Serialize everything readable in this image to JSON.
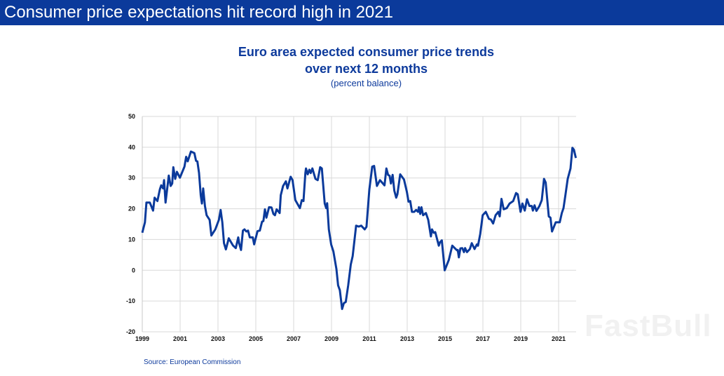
{
  "header": {
    "title": "Consumer price expectations hit record high in 2021",
    "color": "#0b3a9b"
  },
  "watermark": "FastBull",
  "chart_data": {
    "type": "line",
    "title": [
      "Euro area expected consumer price trends",
      "over next 12 months"
    ],
    "subtitle": "(percent balance)",
    "source": "Source: European Commission",
    "xlabel": "",
    "ylabel": "",
    "xlim": [
      1999,
      2022
    ],
    "ylim": [
      -20,
      50
    ],
    "xticks": [
      "1999",
      "2001",
      "2003",
      "2005",
      "2007",
      "2009",
      "2011",
      "2013",
      "2015",
      "2017",
      "2019",
      "2021"
    ],
    "yticks": [
      50,
      40,
      30,
      20,
      10,
      0,
      -10,
      -20
    ],
    "grid": true,
    "line_color": "#0b3a9b",
    "series": [
      {
        "x": [
          1999.0,
          1999.14,
          1999.22,
          1999.4,
          1999.57,
          1999.65,
          1999.8,
          1999.93,
          2000.0,
          2000.1,
          2000.15,
          2000.23,
          2000.4,
          2000.5,
          2000.58,
          2000.64,
          2000.74,
          2000.83,
          2000.99,
          2001.23,
          2001.32,
          2001.4,
          2001.57,
          2001.75,
          2001.84,
          2001.91,
          2002.0,
          2002.09,
          2002.15,
          2002.22,
          2002.31,
          2002.4,
          2002.56,
          2002.65,
          2002.86,
          2003.05,
          2003.14,
          2003.23,
          2003.32,
          2003.42,
          2003.57,
          2003.79,
          2003.94,
          2004.07,
          2004.12,
          2004.22,
          2004.32,
          2004.4,
          2004.5,
          2004.59,
          2004.68,
          2004.84,
          2004.91,
          2005.09,
          2005.21,
          2005.33,
          2005.4,
          2005.48,
          2005.56,
          2005.7,
          2005.83,
          2005.93,
          2006.01,
          2006.1,
          2006.26,
          2006.32,
          2006.44,
          2006.59,
          2006.67,
          2006.84,
          2006.94,
          2007.09,
          2007.33,
          2007.43,
          2007.52,
          2007.62,
          2007.65,
          2007.74,
          2007.83,
          2007.9,
          2007.99,
          2008.15,
          2008.27,
          2008.4,
          2008.49,
          2008.64,
          2008.72,
          2008.77,
          2008.86,
          2008.98,
          2009.1,
          2009.26,
          2009.35,
          2009.44,
          2009.56,
          2009.65,
          2009.75,
          2009.88,
          2010.02,
          2010.12,
          2010.3,
          2010.44,
          2010.57,
          2010.75,
          2010.85,
          2011.0,
          2011.15,
          2011.25,
          2011.4,
          2011.56,
          2011.8,
          2011.9,
          2011.99,
          2012.07,
          2012.14,
          2012.23,
          2012.32,
          2012.42,
          2012.48,
          2012.63,
          2012.83,
          2012.98,
          2013.07,
          2013.16,
          2013.25,
          2013.37,
          2013.47,
          2013.57,
          2013.62,
          2013.69,
          2013.75,
          2013.84,
          2013.99,
          2014.11,
          2014.25,
          2014.31,
          2014.4,
          2014.48,
          2014.67,
          2014.73,
          2014.83,
          2014.98,
          2015.2,
          2015.38,
          2015.51,
          2015.63,
          2015.67,
          2015.73,
          2015.81,
          2015.91,
          2016.0,
          2016.06,
          2016.16,
          2016.31,
          2016.41,
          2016.56,
          2016.68,
          2016.74,
          2016.86,
          2016.99,
          2017.15,
          2017.32,
          2017.42,
          2017.54,
          2017.67,
          2017.81,
          2017.89,
          2017.98,
          2018.1,
          2018.26,
          2018.41,
          2018.6,
          2018.75,
          2018.84,
          2018.99,
          2019.09,
          2019.21,
          2019.33,
          2019.46,
          2019.58,
          2019.64,
          2019.73,
          2019.83,
          2019.99,
          2020.11,
          2020.23,
          2020.32,
          2020.48,
          2020.57,
          2020.65,
          2020.85,
          2021.06,
          2021.17,
          2021.26,
          2021.36,
          2021.48,
          2021.63,
          2021.73,
          2021.81,
          2021.91
        ],
        "y": [
          12.2,
          15.6,
          22,
          22,
          19.4,
          23.6,
          22.5,
          26.3,
          27.6,
          26.6,
          29.3,
          22,
          30.8,
          27.4,
          28.2,
          33.5,
          29.7,
          32,
          30.1,
          33.7,
          36.9,
          35.4,
          38.6,
          38.1,
          35.6,
          35.4,
          31.6,
          24.4,
          21.7,
          26.6,
          20.9,
          17.9,
          16.4,
          11.3,
          13.3,
          16.4,
          19.6,
          15.6,
          8.8,
          6.8,
          10.4,
          8.1,
          7.2,
          10.7,
          8.8,
          6.6,
          12.9,
          13.3,
          12.6,
          12.9,
          10.7,
          10.7,
          8.4,
          12.7,
          12.9,
          15.8,
          16,
          19.8,
          17.1,
          20.5,
          20.4,
          18.3,
          17.9,
          19.8,
          18.6,
          24.4,
          27.4,
          28.9,
          26.6,
          30.4,
          29.3,
          22.8,
          20.2,
          22.8,
          22.5,
          31.6,
          33.1,
          31.2,
          32.7,
          31.6,
          33.1,
          29.7,
          29.3,
          33.5,
          33.1,
          21.7,
          20.2,
          21.8,
          13.3,
          8.4,
          6.1,
          0.4,
          -4.9,
          -6.5,
          -12.6,
          -10.7,
          -10.3,
          -4.9,
          1.9,
          4.6,
          14.5,
          14.2,
          14.5,
          13.3,
          14.1,
          26.3,
          33.7,
          33.9,
          27.4,
          29.3,
          27.6,
          33.1,
          31,
          30.7,
          28.2,
          31,
          25.9,
          23.6,
          24.7,
          31.2,
          29.5,
          25.5,
          22.3,
          22.5,
          19,
          19,
          19.6,
          19,
          20.5,
          18.3,
          20.5,
          17.9,
          18.6,
          16.4,
          11,
          13.3,
          12.2,
          12.4,
          8,
          9.1,
          9.7,
          0,
          3.4,
          8,
          7.2,
          6.5,
          6.6,
          4.2,
          7.1,
          7.2,
          5.9,
          7.2,
          5.9,
          6.9,
          8.8,
          6.9,
          8.4,
          8,
          11.8,
          17.9,
          19,
          16.7,
          16.5,
          15.2,
          17.9,
          19,
          17.5,
          23.2,
          19.8,
          20.2,
          21.7,
          22.5,
          25.1,
          24.7,
          19,
          21.7,
          19.4,
          23.1,
          20.9,
          20.9,
          19.4,
          21.1,
          19.3,
          20.9,
          22.8,
          29.7,
          28.5,
          17.5,
          17.1,
          12.6,
          15.6,
          15.6,
          18.6,
          20.2,
          24.4,
          29.7,
          33.1,
          39.8,
          39.2,
          36.5
        ]
      }
    ]
  }
}
